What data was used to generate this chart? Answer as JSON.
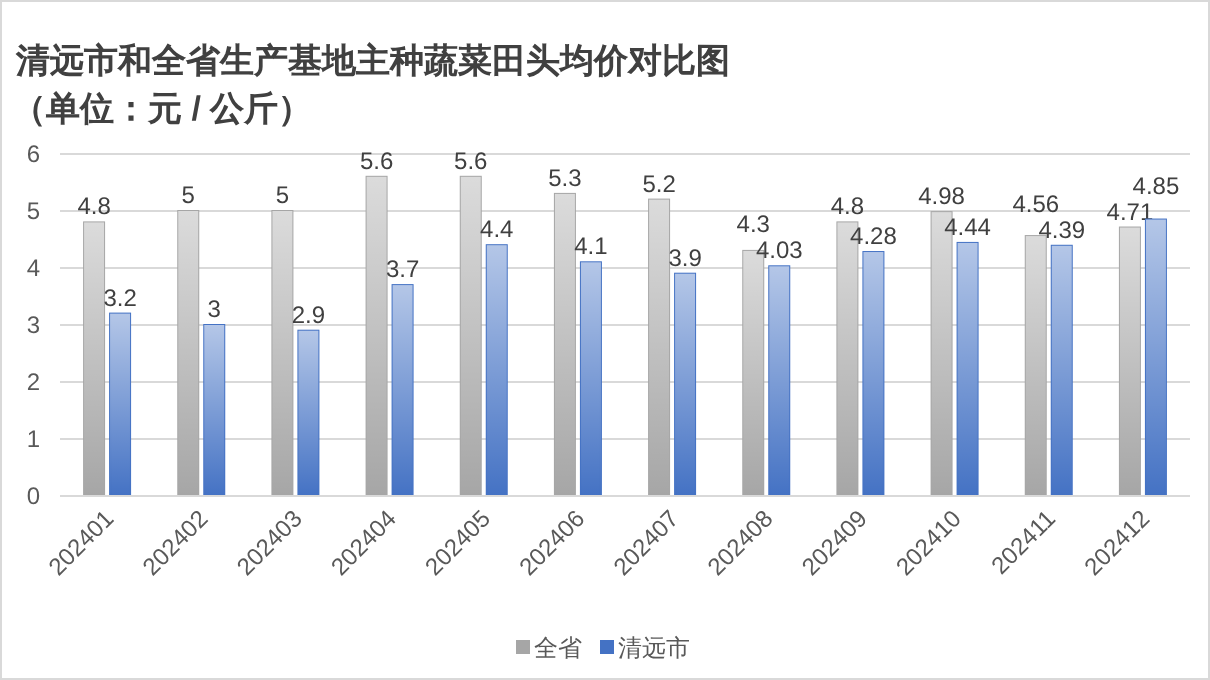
{
  "chart_data": {
    "type": "bar",
    "title": "清远市和全省生产基地主种蔬菜田头均价对比图",
    "subtitle": "（单位：元 / 公斤）",
    "categories": [
      "202401",
      "202402",
      "202403",
      "202404",
      "202405",
      "202406",
      "202407",
      "202408",
      "202409",
      "202410",
      "202411",
      "202412"
    ],
    "series": [
      {
        "name": "全省",
        "color": "#a6a6a6",
        "values": [
          4.8,
          5,
          5,
          5.6,
          5.6,
          5.3,
          5.2,
          4.3,
          4.8,
          4.98,
          4.56,
          4.71
        ]
      },
      {
        "name": "清远市",
        "color": "#4472c4",
        "values": [
          3.2,
          3,
          2.9,
          3.7,
          4.4,
          4.1,
          3.9,
          4.03,
          4.28,
          4.44,
          4.39,
          4.85
        ]
      }
    ],
    "ylim": [
      0,
      6
    ],
    "yticks": [
      0,
      1,
      2,
      3,
      4,
      5,
      6
    ],
    "grid": "y",
    "legend": "bottom",
    "data_labels": true
  }
}
